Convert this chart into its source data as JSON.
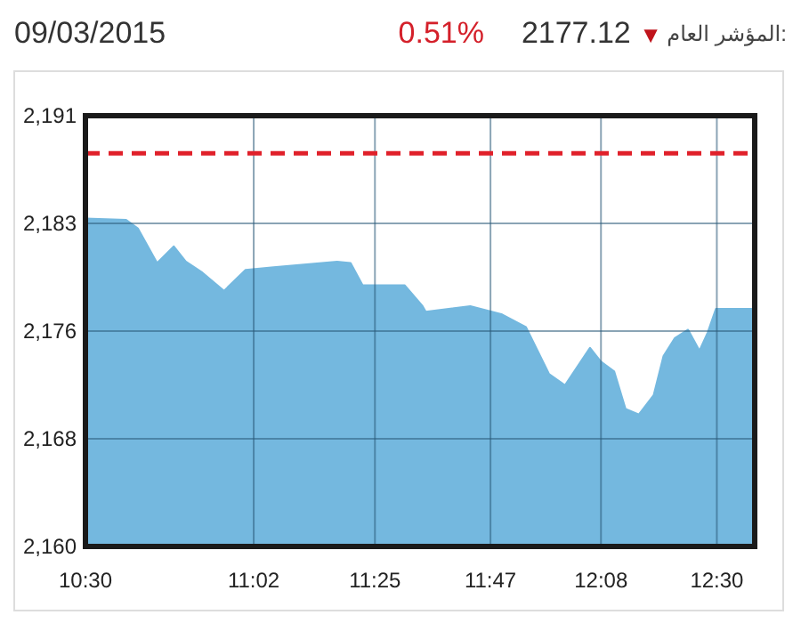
{
  "chart_data": {
    "type": "area",
    "title": "المؤشر العام:",
    "annotations": [
      "09/03/2015",
      "0.51%",
      "2177.12 ▼"
    ],
    "x": [
      10.5,
      10.629,
      10.666,
      10.727,
      10.78,
      10.818,
      10.871,
      10.939,
      11.007,
      11.096,
      11.297,
      11.34,
      11.378,
      11.511,
      11.568,
      11.578,
      11.719,
      11.82,
      11.895,
      11.969,
      12.019,
      12.098,
      12.133,
      12.175,
      12.211,
      12.253,
      12.3,
      12.331,
      12.367,
      12.409,
      12.445,
      12.471,
      12.497,
      12.612
    ],
    "series": [
      {
        "color": "#74b8df",
        "values": [
          2183.6,
          2183.5,
          2182.9,
          2180.4,
          2181.6,
          2180.5,
          2179.7,
          2178.4,
          2179.9,
          2180.1,
          2180.5,
          2180.4,
          2178.8,
          2178.8,
          2177.3,
          2176.9,
          2177.3,
          2176.7,
          2175.8,
          2172.4,
          2171.6,
          2174.3,
          2173.3,
          2172.6,
          2169.9,
          2169.5,
          2170.9,
          2173.7,
          2175.0,
          2175.6,
          2174.1,
          2175.4,
          2177.1,
          2177.1
        ]
      }
    ],
    "xlim": [
      10.5,
      12.62
    ],
    "xticks": [
      {
        "value": 10.5,
        "label": "10:30"
      },
      {
        "value": 11.033,
        "label": "11:02"
      },
      {
        "value": 11.417,
        "label": "11:25"
      },
      {
        "value": 11.783,
        "label": "11:47"
      },
      {
        "value": 12.133,
        "label": "12:08"
      },
      {
        "value": 12.5,
        "label": "12:30"
      }
    ],
    "ylim": [
      2160,
      2191
    ],
    "yticks": [
      {
        "value": 2160,
        "label": "2,160"
      },
      {
        "value": 2167.75,
        "label": "2,168"
      },
      {
        "value": 2175.5,
        "label": "2,176"
      },
      {
        "value": 2183.25,
        "label": "2,183"
      },
      {
        "value": 2191,
        "label": "2,191"
      }
    ],
    "ref_lines": [
      {
        "axis": "y",
        "value": 2188.3,
        "color": "#e0202a",
        "line_style": "dashed"
      }
    ],
    "grid": true
  }
}
